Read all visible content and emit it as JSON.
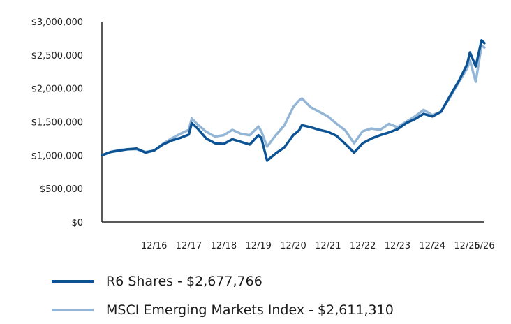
{
  "chart_data": {
    "type": "line",
    "title": "",
    "xlabel": "",
    "ylabel": "",
    "ylim": [
      0,
      3000000
    ],
    "yticks": [
      0,
      500000,
      1000000,
      1500000,
      2000000,
      2500000,
      3000000
    ],
    "ytick_labels": [
      "$0",
      "$500,000",
      "$1,000,000",
      "$1,500,000",
      "$2,000,000",
      "$2,500,000",
      "$3,000,000"
    ],
    "xlim": [
      "2015-06",
      "2026-06"
    ],
    "xticks": [
      "2016-12",
      "2017-12",
      "2018-12",
      "2019-12",
      "2020-12",
      "2021-12",
      "2022-12",
      "2023-12",
      "2024-12",
      "2025-12",
      "2026-06"
    ],
    "xtick_labels": [
      "12/16",
      "12/17",
      "12/18",
      "12/19",
      "12/20",
      "12/21",
      "12/22",
      "12/23",
      "12/24",
      "12/25",
      "6/26"
    ],
    "grid": false,
    "legend_position": "bottom",
    "series": [
      {
        "name": "R6 Shares - $2,677,766",
        "color": "#0b5394",
        "points": [
          [
            "2015-06",
            1000000
          ],
          [
            "2015-09",
            1050000
          ],
          [
            "2015-12",
            1070000
          ],
          [
            "2016-03",
            1090000
          ],
          [
            "2016-06",
            1100000
          ],
          [
            "2016-09",
            1040000
          ],
          [
            "2016-12",
            1070000
          ],
          [
            "2017-03",
            1160000
          ],
          [
            "2017-06",
            1220000
          ],
          [
            "2017-09",
            1260000
          ],
          [
            "2017-12",
            1310000
          ],
          [
            "2018-01",
            1480000
          ],
          [
            "2018-03",
            1400000
          ],
          [
            "2018-06",
            1250000
          ],
          [
            "2018-09",
            1180000
          ],
          [
            "2018-12",
            1170000
          ],
          [
            "2019-03",
            1240000
          ],
          [
            "2019-06",
            1200000
          ],
          [
            "2019-09",
            1160000
          ],
          [
            "2019-12",
            1300000
          ],
          [
            "2020-01",
            1260000
          ],
          [
            "2020-03",
            920000
          ],
          [
            "2020-06",
            1030000
          ],
          [
            "2020-09",
            1120000
          ],
          [
            "2020-12",
            1300000
          ],
          [
            "2021-02",
            1370000
          ],
          [
            "2021-03",
            1450000
          ],
          [
            "2021-06",
            1420000
          ],
          [
            "2021-09",
            1380000
          ],
          [
            "2021-12",
            1350000
          ],
          [
            "2022-03",
            1290000
          ],
          [
            "2022-06",
            1170000
          ],
          [
            "2022-09",
            1040000
          ],
          [
            "2022-12",
            1180000
          ],
          [
            "2023-03",
            1250000
          ],
          [
            "2023-06",
            1300000
          ],
          [
            "2023-09",
            1340000
          ],
          [
            "2023-12",
            1390000
          ],
          [
            "2024-03",
            1480000
          ],
          [
            "2024-06",
            1540000
          ],
          [
            "2024-09",
            1620000
          ],
          [
            "2024-12",
            1580000
          ],
          [
            "2025-03",
            1650000
          ],
          [
            "2025-06",
            1880000
          ],
          [
            "2025-09",
            2100000
          ],
          [
            "2025-12",
            2360000
          ],
          [
            "2026-01",
            2540000
          ],
          [
            "2026-03",
            2330000
          ],
          [
            "2026-05",
            2720000
          ],
          [
            "2026-06",
            2677766
          ]
        ]
      },
      {
        "name": "MSCI Emerging Markets Index - $2,611,310",
        "color": "#93b5d6",
        "points": [
          [
            "2015-06",
            1000000
          ],
          [
            "2015-09",
            1050000
          ],
          [
            "2015-12",
            1080000
          ],
          [
            "2016-03",
            1090000
          ],
          [
            "2016-06",
            1090000
          ],
          [
            "2016-09",
            1050000
          ],
          [
            "2016-12",
            1070000
          ],
          [
            "2017-03",
            1170000
          ],
          [
            "2017-06",
            1250000
          ],
          [
            "2017-09",
            1320000
          ],
          [
            "2017-12",
            1380000
          ],
          [
            "2018-01",
            1550000
          ],
          [
            "2018-03",
            1460000
          ],
          [
            "2018-06",
            1350000
          ],
          [
            "2018-09",
            1280000
          ],
          [
            "2018-12",
            1300000
          ],
          [
            "2019-03",
            1380000
          ],
          [
            "2019-06",
            1320000
          ],
          [
            "2019-09",
            1300000
          ],
          [
            "2019-12",
            1430000
          ],
          [
            "2020-01",
            1360000
          ],
          [
            "2020-03",
            1130000
          ],
          [
            "2020-06",
            1300000
          ],
          [
            "2020-09",
            1450000
          ],
          [
            "2020-12",
            1720000
          ],
          [
            "2021-02",
            1820000
          ],
          [
            "2021-03",
            1850000
          ],
          [
            "2021-06",
            1720000
          ],
          [
            "2021-09",
            1650000
          ],
          [
            "2021-12",
            1580000
          ],
          [
            "2022-03",
            1470000
          ],
          [
            "2022-06",
            1370000
          ],
          [
            "2022-09",
            1180000
          ],
          [
            "2022-12",
            1360000
          ],
          [
            "2023-03",
            1400000
          ],
          [
            "2023-06",
            1380000
          ],
          [
            "2023-09",
            1470000
          ],
          [
            "2023-12",
            1420000
          ],
          [
            "2024-03",
            1500000
          ],
          [
            "2024-06",
            1580000
          ],
          [
            "2024-09",
            1680000
          ],
          [
            "2024-12",
            1600000
          ],
          [
            "2025-03",
            1650000
          ],
          [
            "2025-06",
            1860000
          ],
          [
            "2025-09",
            2080000
          ],
          [
            "2025-12",
            2300000
          ],
          [
            "2026-01",
            2420000
          ],
          [
            "2026-03",
            2100000
          ],
          [
            "2026-05",
            2640000
          ],
          [
            "2026-06",
            2611310
          ]
        ]
      }
    ]
  }
}
